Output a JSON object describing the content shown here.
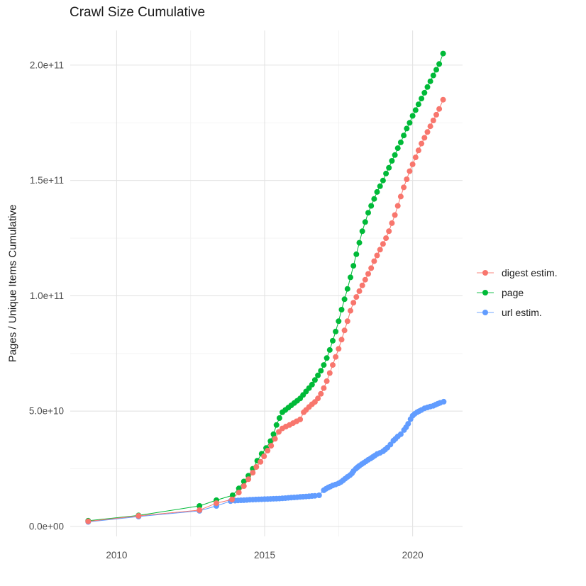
{
  "colors": {
    "digest": "#F8766D",
    "page": "#00BA38",
    "url": "#619CFF",
    "grid_major": "#E3E3E3",
    "grid_minor": "#F2F2F2",
    "axis_text": "#4D4D4D",
    "title_text": "#1A1A1A"
  },
  "chart_data": {
    "type": "scatter",
    "title": "Crawl Size Cumulative",
    "xlabel": "",
    "ylabel": "Pages / Unique Items Cumulative",
    "value_unit": "billions (value 205 = 2.05e+11)",
    "legend_position": "right",
    "x_axis": {
      "range": [
        2008.4,
        2021.7
      ],
      "ticks": [
        {
          "label": "2010",
          "year": 2010
        },
        {
          "label": "2015",
          "year": 2015
        },
        {
          "label": "2020",
          "year": 2020
        }
      ],
      "minor_years": [
        2012.5,
        2017.5
      ]
    },
    "y_axis": {
      "range_e9": [
        -8,
        215
      ],
      "ticks": [
        {
          "label": "0.0e+00",
          "value_e9": 0
        },
        {
          "label": "5.0e+10",
          "value_e9": 50
        },
        {
          "label": "1.0e+11",
          "value_e9": 100
        },
        {
          "label": "1.5e+11",
          "value_e9": 150
        },
        {
          "label": "2.0e+11",
          "value_e9": 200
        }
      ],
      "minor_values_e9": [
        25,
        75,
        125,
        175
      ]
    },
    "series": [
      {
        "id": "digest-estim",
        "name": "digest estim.",
        "color": "#F8766D",
        "points": [
          [
            2009.04,
            2.2
          ],
          [
            2010.74,
            4.6
          ],
          [
            2012.8,
            7.1
          ],
          [
            2013.37,
            10.1
          ],
          [
            2013.9,
            11.7
          ],
          [
            2014.13,
            14.7
          ],
          [
            2014.3,
            17.5
          ],
          [
            2014.45,
            20.5
          ],
          [
            2014.6,
            23.3
          ],
          [
            2014.72,
            25.8
          ],
          [
            2014.86,
            28
          ],
          [
            2014.98,
            30.4
          ],
          [
            2015.1,
            32.9
          ],
          [
            2015.22,
            35
          ],
          [
            2015.35,
            38
          ],
          [
            2015.48,
            41
          ],
          [
            2015.6,
            42.5
          ],
          [
            2015.72,
            43.3
          ],
          [
            2015.84,
            44
          ],
          [
            2015.96,
            44.8
          ],
          [
            2016.08,
            45.6
          ],
          [
            2016.2,
            46.4
          ],
          [
            2016.32,
            49.5
          ],
          [
            2016.4,
            50.5
          ],
          [
            2016.5,
            51.8
          ],
          [
            2016.6,
            53
          ],
          [
            2016.7,
            54
          ],
          [
            2016.8,
            55.5
          ],
          [
            2016.9,
            57.5
          ],
          [
            2017.0,
            60
          ],
          [
            2017.1,
            63
          ],
          [
            2017.2,
            66.5
          ],
          [
            2017.3,
            70
          ],
          [
            2017.4,
            73.5
          ],
          [
            2017.5,
            77
          ],
          [
            2017.6,
            81
          ],
          [
            2017.7,
            85
          ],
          [
            2017.8,
            89
          ],
          [
            2017.9,
            93.5
          ],
          [
            2018.0,
            97
          ],
          [
            2018.1,
            99.5
          ],
          [
            2018.2,
            102
          ],
          [
            2018.3,
            104.5
          ],
          [
            2018.4,
            107
          ],
          [
            2018.5,
            109.5
          ],
          [
            2018.6,
            112
          ],
          [
            2018.7,
            115
          ],
          [
            2018.8,
            117.5
          ],
          [
            2018.9,
            120
          ],
          [
            2019.0,
            122.5
          ],
          [
            2019.1,
            125
          ],
          [
            2019.2,
            128
          ],
          [
            2019.3,
            131.5
          ],
          [
            2019.4,
            135
          ],
          [
            2019.5,
            139
          ],
          [
            2019.6,
            143
          ],
          [
            2019.7,
            147
          ],
          [
            2019.8,
            150.5
          ],
          [
            2019.9,
            154
          ],
          [
            2020.0,
            157
          ],
          [
            2020.1,
            160
          ],
          [
            2020.2,
            163
          ],
          [
            2020.3,
            166
          ],
          [
            2020.4,
            168.5
          ],
          [
            2020.5,
            171
          ],
          [
            2020.6,
            173.5
          ],
          [
            2020.7,
            176
          ],
          [
            2020.8,
            178.5
          ],
          [
            2020.9,
            181
          ],
          [
            2021.03,
            185
          ]
        ]
      },
      {
        "id": "page",
        "name": "page",
        "color": "#00BA38",
        "points": [
          [
            2009.04,
            2.5
          ],
          [
            2010.74,
            4.8
          ],
          [
            2012.8,
            8.9
          ],
          [
            2013.37,
            11.4
          ],
          [
            2013.92,
            13.5
          ],
          [
            2014.13,
            16.5
          ],
          [
            2014.3,
            19.5
          ],
          [
            2014.45,
            22
          ],
          [
            2014.6,
            25
          ],
          [
            2014.75,
            28.5
          ],
          [
            2014.9,
            31.5
          ],
          [
            2015.05,
            34
          ],
          [
            2015.2,
            37
          ],
          [
            2015.3,
            40
          ],
          [
            2015.4,
            44
          ],
          [
            2015.5,
            47
          ],
          [
            2015.6,
            49.5
          ],
          [
            2015.7,
            50.5
          ],
          [
            2015.8,
            51.5
          ],
          [
            2015.9,
            52.5
          ],
          [
            2016.0,
            53.5
          ],
          [
            2016.1,
            54.5
          ],
          [
            2016.2,
            55.5
          ],
          [
            2016.3,
            57
          ],
          [
            2016.4,
            58.5
          ],
          [
            2016.5,
            60
          ],
          [
            2016.6,
            61.5
          ],
          [
            2016.7,
            63.5
          ],
          [
            2016.8,
            65.5
          ],
          [
            2016.9,
            67.5
          ],
          [
            2017.0,
            70
          ],
          [
            2017.1,
            73
          ],
          [
            2017.2,
            76.5
          ],
          [
            2017.3,
            80.5
          ],
          [
            2017.4,
            84.5
          ],
          [
            2017.5,
            89
          ],
          [
            2017.6,
            94
          ],
          [
            2017.7,
            98.5
          ],
          [
            2017.8,
            103
          ],
          [
            2017.9,
            108
          ],
          [
            2018.0,
            113
          ],
          [
            2018.1,
            118
          ],
          [
            2018.2,
            123
          ],
          [
            2018.3,
            128
          ],
          [
            2018.4,
            132
          ],
          [
            2018.5,
            136
          ],
          [
            2018.6,
            139
          ],
          [
            2018.7,
            142
          ],
          [
            2018.8,
            145
          ],
          [
            2018.9,
            147.5
          ],
          [
            2019.0,
            150
          ],
          [
            2019.1,
            153
          ],
          [
            2019.2,
            155.5
          ],
          [
            2019.3,
            158.5
          ],
          [
            2019.4,
            161
          ],
          [
            2019.5,
            164
          ],
          [
            2019.6,
            166.5
          ],
          [
            2019.7,
            169.5
          ],
          [
            2019.8,
            172.5
          ],
          [
            2019.9,
            175
          ],
          [
            2020.0,
            178
          ],
          [
            2020.1,
            180.5
          ],
          [
            2020.2,
            183
          ],
          [
            2020.3,
            185.5
          ],
          [
            2020.4,
            188
          ],
          [
            2020.5,
            190.5
          ],
          [
            2020.6,
            193
          ],
          [
            2020.7,
            195.5
          ],
          [
            2020.8,
            198
          ],
          [
            2020.9,
            200.5
          ],
          [
            2021.03,
            205
          ]
        ]
      },
      {
        "id": "url-estim",
        "name": "url estim.",
        "color": "#619CFF",
        "points": [
          [
            2009.04,
            2
          ],
          [
            2010.74,
            4.3
          ],
          [
            2012.8,
            6.8
          ],
          [
            2013.37,
            8.9
          ],
          [
            2013.85,
            11
          ],
          [
            2014.0,
            11.2
          ],
          [
            2014.1,
            11.3
          ],
          [
            2014.2,
            11.35
          ],
          [
            2014.3,
            11.4
          ],
          [
            2014.4,
            11.5
          ],
          [
            2014.5,
            11.6
          ],
          [
            2014.6,
            11.65
          ],
          [
            2014.7,
            11.7
          ],
          [
            2014.8,
            11.75
          ],
          [
            2014.9,
            11.8
          ],
          [
            2015.0,
            11.85
          ],
          [
            2015.1,
            11.9
          ],
          [
            2015.2,
            11.95
          ],
          [
            2015.3,
            12
          ],
          [
            2015.4,
            12.05
          ],
          [
            2015.5,
            12.1
          ],
          [
            2015.6,
            12.2
          ],
          [
            2015.7,
            12.3
          ],
          [
            2015.8,
            12.4
          ],
          [
            2015.9,
            12.5
          ],
          [
            2016.0,
            12.6
          ],
          [
            2016.1,
            12.7
          ],
          [
            2016.2,
            12.8
          ],
          [
            2016.3,
            12.9
          ],
          [
            2016.4,
            13
          ],
          [
            2016.5,
            13.1
          ],
          [
            2016.6,
            13.2
          ],
          [
            2016.7,
            13.3
          ],
          [
            2016.84,
            13.5
          ],
          [
            2017.0,
            15.7
          ],
          [
            2017.07,
            16.3
          ],
          [
            2017.15,
            16.9
          ],
          [
            2017.22,
            17.3
          ],
          [
            2017.3,
            17.8
          ],
          [
            2017.4,
            18.2
          ],
          [
            2017.5,
            18.7
          ],
          [
            2017.58,
            19.3
          ],
          [
            2017.65,
            20
          ],
          [
            2017.72,
            20.7
          ],
          [
            2017.8,
            21.5
          ],
          [
            2017.88,
            22.2
          ],
          [
            2017.95,
            23
          ],
          [
            2018.0,
            24
          ],
          [
            2018.08,
            25
          ],
          [
            2018.14,
            25.7
          ],
          [
            2018.2,
            26.3
          ],
          [
            2018.28,
            27
          ],
          [
            2018.35,
            27.6
          ],
          [
            2018.42,
            28.2
          ],
          [
            2018.5,
            28.9
          ],
          [
            2018.58,
            29.5
          ],
          [
            2018.65,
            30.1
          ],
          [
            2018.72,
            30.7
          ],
          [
            2018.8,
            31.4
          ],
          [
            2018.9,
            31.9
          ],
          [
            2019.0,
            32.6
          ],
          [
            2019.07,
            33.3
          ],
          [
            2019.15,
            34.2
          ],
          [
            2019.25,
            35.5
          ],
          [
            2019.35,
            37.2
          ],
          [
            2019.42,
            38
          ],
          [
            2019.5,
            39
          ],
          [
            2019.6,
            40
          ],
          [
            2019.71,
            41.8
          ],
          [
            2019.78,
            43
          ],
          [
            2019.85,
            44.5
          ],
          [
            2019.93,
            46.5
          ],
          [
            2020.0,
            48
          ],
          [
            2020.07,
            48.8
          ],
          [
            2020.15,
            49.5
          ],
          [
            2020.22,
            50
          ],
          [
            2020.3,
            50.5
          ],
          [
            2020.4,
            51.2
          ],
          [
            2020.5,
            51.6
          ],
          [
            2020.6,
            52
          ],
          [
            2020.7,
            52.3
          ],
          [
            2020.78,
            52.8
          ],
          [
            2020.85,
            53.2
          ],
          [
            2020.93,
            53.6
          ],
          [
            2021.05,
            54.1
          ]
        ]
      }
    ]
  }
}
